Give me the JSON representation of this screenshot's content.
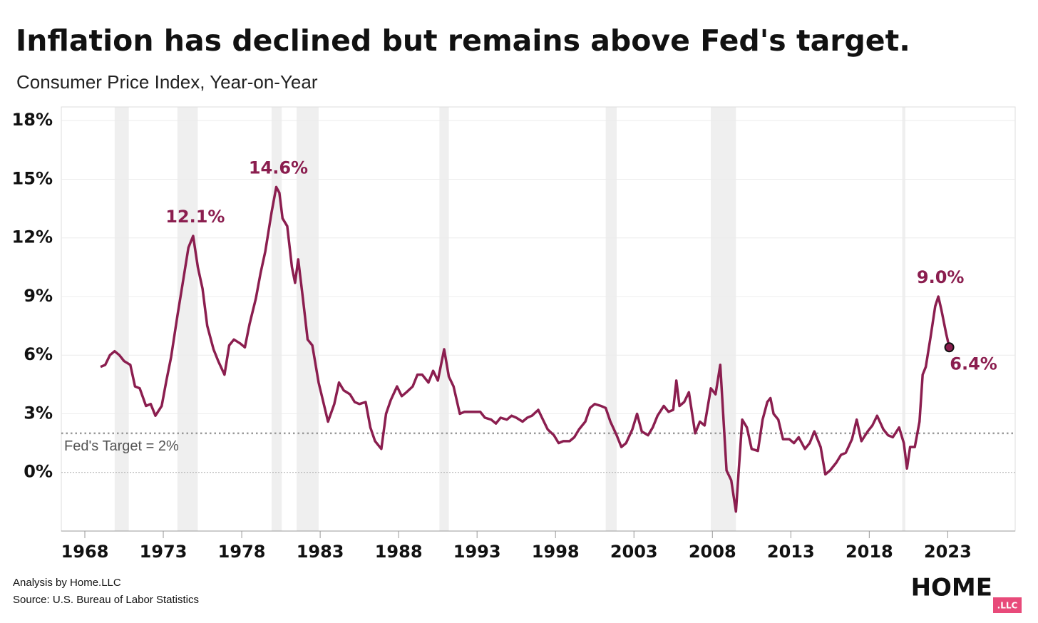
{
  "chart_data": {
    "type": "line",
    "title": "Inflation has declined but remains above Fed's target.",
    "subtitle": "Consumer Price Index, Year-on-Year",
    "xlim": [
      1966.5,
      2027.3
    ],
    "ylim": [
      -3,
      18.7
    ],
    "xticks": [
      1968,
      1973,
      1978,
      1983,
      1988,
      1993,
      1998,
      2003,
      2008,
      2013,
      2018,
      2023
    ],
    "yticks": [
      {
        "value": 0,
        "label": "0%"
      },
      {
        "value": 3,
        "label": "3%"
      },
      {
        "value": 6,
        "label": "6%"
      },
      {
        "value": 9,
        "label": "9%"
      },
      {
        "value": 12,
        "label": "12%"
      },
      {
        "value": 15,
        "label": "15%"
      },
      {
        "value": 18,
        "label": "18%"
      }
    ],
    "grid": true,
    "recessions": [
      [
        1969.9,
        1970.8
      ],
      [
        1973.9,
        1975.2
      ],
      [
        1979.9,
        1980.55
      ],
      [
        1981.5,
        1982.9
      ],
      [
        1990.6,
        1991.2
      ],
      [
        2001.2,
        2001.9
      ],
      [
        2007.9,
        2009.5
      ],
      [
        2020.1,
        2020.3
      ]
    ],
    "target": {
      "value": 2,
      "label": "Fed's Target = 2%"
    },
    "series": [
      {
        "name": "CPI YoY",
        "color": "#8b1e4f",
        "x": [
          1969.0,
          1969.3,
          1969.6,
          1969.9,
          1970.2,
          1970.5,
          1970.9,
          1971.2,
          1971.5,
          1971.9,
          1972.2,
          1972.5,
          1972.9,
          1973.2,
          1973.5,
          1973.9,
          1974.3,
          1974.6,
          1974.9,
          1975.2,
          1975.5,
          1975.8,
          1976.2,
          1976.5,
          1976.9,
          1977.2,
          1977.5,
          1977.9,
          1978.2,
          1978.5,
          1978.9,
          1979.2,
          1979.5,
          1979.9,
          1980.2,
          1980.4,
          1980.6,
          1980.9,
          1981.2,
          1981.4,
          1981.6,
          1981.9,
          1982.2,
          1982.5,
          1982.9,
          1983.2,
          1983.5,
          1983.9,
          1984.2,
          1984.5,
          1984.9,
          1985.2,
          1985.5,
          1985.9,
          1986.2,
          1986.5,
          1986.9,
          1987.2,
          1987.5,
          1987.9,
          1988.2,
          1988.5,
          1988.9,
          1989.2,
          1989.5,
          1989.9,
          1990.2,
          1990.5,
          1990.9,
          1991.2,
          1991.5,
          1991.9,
          1992.2,
          1992.5,
          1992.9,
          1993.2,
          1993.5,
          1993.9,
          1994.2,
          1994.5,
          1994.9,
          1995.2,
          1995.5,
          1995.9,
          1996.2,
          1996.5,
          1996.9,
          1997.2,
          1997.5,
          1997.9,
          1998.2,
          1998.5,
          1998.9,
          1999.2,
          1999.5,
          1999.9,
          2000.2,
          2000.5,
          2000.9,
          2001.2,
          2001.5,
          2001.9,
          2002.2,
          2002.5,
          2002.9,
          2003.2,
          2003.5,
          2003.9,
          2004.2,
          2004.5,
          2004.9,
          2005.2,
          2005.5,
          2005.7,
          2005.9,
          2006.2,
          2006.5,
          2006.9,
          2007.2,
          2007.5,
          2007.9,
          2008.2,
          2008.5,
          2008.9,
          2009.2,
          2009.5,
          2009.9,
          2010.2,
          2010.5,
          2010.9,
          2011.2,
          2011.5,
          2011.7,
          2011.9,
          2012.2,
          2012.5,
          2012.9,
          2013.2,
          2013.5,
          2013.9,
          2014.2,
          2014.5,
          2014.9,
          2015.2,
          2015.5,
          2015.9,
          2016.2,
          2016.5,
          2016.9,
          2017.2,
          2017.5,
          2017.9,
          2018.2,
          2018.5,
          2018.9,
          2019.2,
          2019.5,
          2019.9,
          2020.2,
          2020.4,
          2020.6,
          2020.9,
          2021.2,
          2021.4,
          2021.6,
          2021.9,
          2022.2,
          2022.4,
          2022.6,
          2022.9,
          2023.1
        ],
        "values": [
          5.4,
          5.5,
          6.0,
          6.2,
          6.0,
          5.7,
          5.5,
          4.4,
          4.3,
          3.4,
          3.5,
          2.9,
          3.4,
          4.7,
          5.9,
          8.0,
          10.0,
          11.5,
          12.1,
          10.5,
          9.4,
          7.5,
          6.3,
          5.7,
          5.0,
          6.5,
          6.8,
          6.6,
          6.4,
          7.6,
          8.9,
          10.2,
          11.3,
          13.3,
          14.6,
          14.3,
          13.0,
          12.6,
          10.5,
          9.7,
          10.9,
          8.9,
          6.8,
          6.5,
          4.6,
          3.6,
          2.6,
          3.5,
          4.6,
          4.2,
          4.0,
          3.6,
          3.5,
          3.6,
          2.3,
          1.6,
          1.2,
          3.0,
          3.7,
          4.4,
          3.9,
          4.1,
          4.4,
          5.0,
          5.0,
          4.6,
          5.2,
          4.7,
          6.3,
          4.9,
          4.4,
          3.0,
          3.1,
          3.1,
          3.1,
          3.1,
          2.8,
          2.7,
          2.5,
          2.8,
          2.7,
          2.9,
          2.8,
          2.6,
          2.8,
          2.9,
          3.2,
          2.7,
          2.2,
          1.9,
          1.5,
          1.6,
          1.6,
          1.8,
          2.2,
          2.6,
          3.3,
          3.5,
          3.4,
          3.3,
          2.6,
          1.9,
          1.3,
          1.5,
          2.2,
          3.0,
          2.1,
          1.9,
          2.3,
          2.9,
          3.4,
          3.1,
          3.2,
          4.7,
          3.4,
          3.6,
          4.1,
          2.0,
          2.6,
          2.4,
          4.3,
          4.0,
          5.5,
          0.1,
          -0.4,
          -2.0,
          2.7,
          2.3,
          1.2,
          1.1,
          2.7,
          3.6,
          3.8,
          3.0,
          2.7,
          1.7,
          1.7,
          1.5,
          1.8,
          1.2,
          1.5,
          2.1,
          1.3,
          -0.1,
          0.1,
          0.5,
          0.9,
          1.0,
          1.7,
          2.7,
          1.6,
          2.1,
          2.4,
          2.9,
          2.2,
          1.9,
          1.8,
          2.3,
          1.5,
          0.2,
          1.3,
          1.3,
          2.6,
          5.0,
          5.4,
          6.9,
          8.5,
          9.0,
          8.3,
          7.1,
          6.4
        ]
      }
    ],
    "annotations": [
      {
        "label": "12.1%",
        "x": 1974.9,
        "y": 12.1
      },
      {
        "label": "14.6%",
        "x": 1980.2,
        "y": 14.6
      },
      {
        "label": "9.0%",
        "x": 2022.4,
        "y": 9.0
      },
      {
        "label": "6.4%",
        "x": 2023.1,
        "y": 6.4,
        "marker": true
      }
    ]
  },
  "footer": {
    "analysis": "Analysis by Home.LLC",
    "source": "Source: U.S. Bureau of Labor Statistics"
  },
  "logo": {
    "name": "HOME",
    "suffix": ".LLC"
  }
}
